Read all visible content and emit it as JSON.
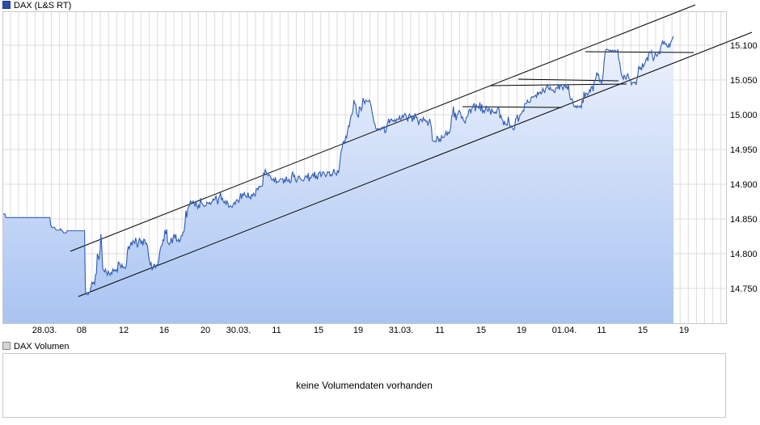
{
  "legend": {
    "main": "DAX (L&S RT)",
    "volume": "DAX Volumen"
  },
  "volume_message": "keine Volumendaten vorhanden",
  "colors": {
    "line": "#2e5bb5",
    "area_top": "#eef3fd",
    "area_bottom": "#a9c4f2",
    "grid": "#dcdcdc",
    "trend": "#000000"
  },
  "chart_data": {
    "type": "area",
    "title": "",
    "xlabel": "",
    "ylabel": "",
    "x_tick_labels": [
      "28.03.",
      "08",
      "12",
      "16",
      "20",
      "30.03.",
      "11",
      "15",
      "19",
      "31.03.",
      "11",
      "15",
      "19",
      "01.04.",
      "11",
      "15",
      "19"
    ],
    "y_tick_labels": [
      "14.750",
      "14.800",
      "14.850",
      "14.900",
      "14.950",
      "15.000",
      "15.050",
      "15.100"
    ],
    "ylim": [
      14700,
      15100
    ],
    "grid": true,
    "series": [
      {
        "values": [
          14857,
          14857,
          14857,
          14852,
          14852,
          14852,
          14852,
          14852,
          14852,
          14852,
          14852,
          14852,
          14852,
          14852,
          14852,
          14852,
          14852,
          14852,
          14852,
          14852,
          14852,
          14852,
          14852,
          14852,
          14852,
          14852,
          14852,
          14852,
          14852,
          14852,
          14852,
          14852,
          14852,
          14852,
          14852,
          14852,
          14852,
          14852,
          14852,
          14852,
          14852,
          14852,
          14852,
          14852,
          14852,
          14852,
          14852,
          14852,
          14852,
          14852,
          14852,
          14852,
          14841,
          14838,
          14838,
          14838,
          14838,
          14836,
          14834,
          14834,
          14834,
          14834,
          14834,
          14836,
          14833,
          14833,
          14830,
          14830,
          14830,
          14830,
          14833,
          14833,
          14833,
          14833,
          14833,
          14833,
          14833,
          14833,
          14833,
          14833,
          14833,
          14833,
          14833,
          14833,
          14833,
          14833,
          14833,
          14833,
          14833,
          14833,
          14747,
          14742,
          14741,
          14741,
          14744,
          14745,
          14751,
          14759,
          14757,
          14759,
          14756,
          14770,
          14771,
          14800,
          14796,
          14791,
          14804,
          14828,
          14806,
          14778,
          14776,
          14774,
          14778,
          14773,
          14769,
          14775,
          14772,
          14769,
          14773,
          14771,
          14778,
          14775,
          14777,
          14775,
          14777,
          14774,
          14788,
          14787,
          14784,
          14780,
          14785,
          14780,
          14781,
          14779,
          14779,
          14785,
          14804,
          14811,
          14807,
          14811,
          14817,
          14812,
          14819,
          14817,
          14815,
          14823,
          14816,
          14809,
          14815,
          14822,
          14820,
          14814,
          14819,
          14812,
          14821,
          14820,
          14814,
          14815,
          14811,
          14798,
          14791,
          14784,
          14787,
          14777,
          14779,
          14785,
          14784,
          14780,
          14784,
          14784,
          14788,
          14799,
          14807,
          14811,
          14812,
          14820,
          14819,
          14834,
          14828,
          14835,
          14816,
          14815,
          14813,
          14817,
          14823,
          14815,
          14822,
          14828,
          14823,
          14828,
          14818,
          14818,
          14821,
          14817,
          14820,
          14826,
          14826,
          14831,
          14832,
          14843,
          14862,
          14852,
          14864,
          14868,
          14869,
          14876,
          14874,
          14873,
          14876,
          14872,
          14868,
          14876,
          14870,
          14865,
          14870,
          14866,
          14880,
          14874,
          14872,
          14870,
          14868,
          14869,
          14869,
          14874,
          14873,
          14872,
          14874,
          14871,
          14873,
          14876,
          14879,
          14877,
          14879,
          14883,
          14877,
          14871,
          14880,
          14883,
          14888,
          14878,
          14880,
          14875,
          14873,
          14876,
          14871,
          14876,
          14873,
          14867,
          14868,
          14869,
          14867,
          14867,
          14872,
          14874,
          14871,
          14876,
          14878,
          14876,
          14874,
          14880,
          14887,
          14879,
          14886,
          14884,
          14888,
          14884,
          14882,
          14881,
          14888,
          14881,
          14882,
          14879,
          14885,
          14883,
          14887,
          14885,
          14883,
          14893,
          14894,
          14892,
          14897,
          14896,
          14897,
          14897,
          14898,
          14916,
          14915,
          14921,
          14917,
          14915,
          14912,
          14914,
          14913,
          14910,
          14906,
          14906,
          14908,
          14903,
          14910,
          14902,
          14904,
          14903,
          14904,
          14907,
          14908,
          14908,
          14908,
          14901,
          14907,
          14904,
          14911,
          14905,
          14904,
          14907,
          14902,
          14903,
          14914,
          14918,
          14911,
          14913,
          14906,
          14903,
          14906,
          14911,
          14912,
          14909,
          14907,
          14906,
          14905,
          14905,
          14909,
          14912,
          14912,
          14909,
          14916,
          14904,
          14910,
          14909,
          14913,
          14915,
          14910,
          14918,
          14908,
          14912,
          14907,
          14915,
          14917,
          14918,
          14911,
          14914,
          14918,
          14917,
          14915,
          14911,
          14912,
          14918,
          14917,
          14918,
          14912,
          14914,
          14912,
          14916,
          14922,
          14917,
          14915,
          14913,
          14920,
          14916,
          14923,
          14937,
          14947,
          14951,
          14960,
          14962,
          14958,
          14969,
          14967,
          14975,
          14984,
          14983,
          14993,
          14999,
          15000,
          15007,
          15021,
          15016,
          15015,
          15002,
          14999,
          14996,
          15011,
          15011,
          15006,
          15010,
          15024,
          15020,
          15016,
          15021,
          15020,
          15019,
          15019,
          15021,
          15017,
          15012,
          15003,
          14997,
          14989,
          14987,
          14980,
          14979,
          14980,
          14979,
          14980,
          14978,
          14981,
          14982,
          14980,
          14983,
          14974,
          14975,
          14983,
          14988,
          14994,
          14988,
          14993,
          14994,
          14991,
          14992,
          14990,
          14993,
          14990,
          14994,
          14994,
          14993,
          14998,
          14993,
          14994,
          14999,
          14996,
          15000,
          15002,
          14999,
          14994,
          14991,
          14999,
          15001,
          14998,
          14998,
          14990,
          14997,
          14993,
          15002,
          14996,
          14997,
          14991,
          14986,
          14991,
          14994,
          14993,
          14990,
          14996,
          14992,
          14993,
          14990,
          14991,
          14985,
          14989,
          14994,
          14988,
          14980,
          14963,
          14962,
          14962,
          14961,
          14961,
          14969,
          14968,
          14961,
          14965,
          14962,
          14970,
          14967,
          14967,
          14968,
          14972,
          14976,
          14970,
          14975,
          14973,
          14975,
          14981,
          14998,
          14999,
          15012,
          14996,
          15003,
          14992,
          15000,
          15001,
          15006,
          15005,
          15001,
          14995,
          14997,
          14992,
          14990,
          14988,
          14996,
          14997,
          14999,
          15007,
          15008,
          15003,
          15008,
          15011,
          15015,
          15016,
          15005,
          15015,
          15011,
          15011,
          15009,
          15018,
          15005,
          15015,
          15003,
          15006,
          15003,
          15008,
          15013,
          15006,
          15005,
          15010,
          15006,
          15000,
          15009,
          15004,
          15004,
          15002,
          15004,
          15002,
          15008,
          15011,
          15008,
          14995,
          14999,
          14994,
          14992,
          14985,
          14991,
          14986,
          14986,
          14985,
          14997,
          14990,
          14982,
          14984,
          14982,
          14980,
          14978,
          14980,
          14994,
          14995,
          15000,
          14990,
          14995,
          15000,
          15001,
          15003,
          15006,
          15005,
          15016,
          15016,
          15016,
          15021,
          15018,
          15018,
          15018,
          15024,
          15026,
          15025,
          15026,
          15027,
          15028,
          15025,
          15033,
          15029,
          15032,
          15033,
          15030,
          15032,
          15038,
          15034,
          15032,
          15038,
          15040,
          15043,
          15038,
          15036,
          15040,
          15036,
          15035,
          15036,
          15033,
          15032,
          15038,
          15039,
          15038,
          15044,
          15036,
          15043,
          15042,
          15040,
          15036,
          15041,
          15043,
          15039,
          15041,
          15036,
          15043,
          15030,
          15022,
          15022,
          15023,
          15016,
          15012,
          15011,
          15013,
          15010,
          15013,
          15011,
          15011,
          15013,
          15010,
          15021,
          15017,
          15033,
          15025,
          15031,
          15031,
          15028,
          15030,
          15036,
          15033,
          15040,
          15041,
          15034,
          15047,
          15049,
          15053,
          15061,
          15057,
          15058,
          15048,
          15050,
          15045,
          15048,
          15059,
          15076,
          15088,
          15094,
          15094,
          15094,
          15093,
          15092,
          15093,
          15091,
          15093,
          15092,
          15092,
          15093,
          15091,
          15090,
          15094,
          15080,
          15076,
          15066,
          15057,
          15055,
          15051,
          15057,
          15054,
          15051,
          15057,
          15059,
          15053,
          15051,
          15050,
          15043,
          15046,
          15047,
          15046,
          15047,
          15043,
          15051,
          15058,
          15070,
          15066,
          15068,
          15064,
          15074,
          15069,
          15072,
          15075,
          15080,
          15082,
          15077,
          15089,
          15091,
          15089,
          15092,
          15083,
          15078,
          15082,
          15089,
          15086,
          15084,
          15088,
          15091,
          15087,
          15098,
          15101,
          15106,
          15102,
          15105,
          15101,
          15102,
          15098,
          15097,
          15102,
          15097,
          15104,
          15107,
          15110,
          15113
        ]
      }
    ]
  }
}
